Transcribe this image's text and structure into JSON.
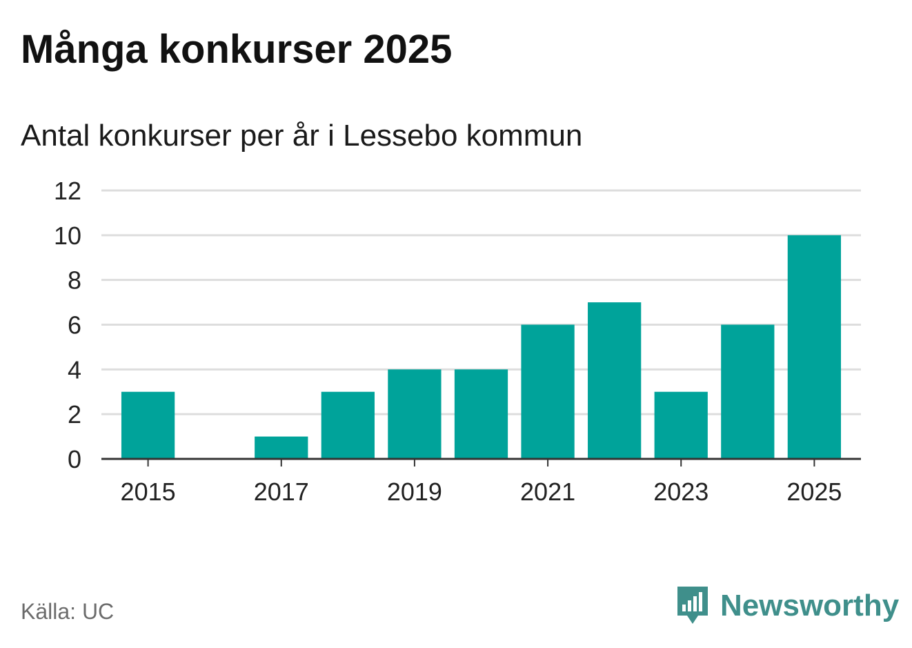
{
  "header": {
    "title": "Många konkurser 2025",
    "subtitle": "Antal konkurser per år i Lessebo kommun"
  },
  "footer": {
    "source": "Källa: UC",
    "brand": "Newsworthy",
    "brand_icon": "newsworthy-logo-icon"
  },
  "colors": {
    "bar": "#00a39a",
    "grid": "#dddddd",
    "axis": "#333333",
    "brand": "#3f8f8b"
  },
  "chart_data": {
    "type": "bar",
    "title": "Många konkurser 2025",
    "subtitle": "Antal konkurser per år i Lessebo kommun",
    "categories": [
      2015,
      2016,
      2017,
      2018,
      2019,
      2020,
      2021,
      2022,
      2023,
      2024,
      2025
    ],
    "values": [
      3,
      0,
      1,
      3,
      4,
      4,
      6,
      7,
      3,
      6,
      10
    ],
    "x_ticks": [
      2015,
      2017,
      2019,
      2021,
      2023,
      2025
    ],
    "y_ticks": [
      0,
      2,
      4,
      6,
      8,
      10,
      12
    ],
    "ylim": [
      0,
      12
    ],
    "xlabel": "",
    "ylabel": "",
    "grid": true,
    "legend": "none"
  }
}
